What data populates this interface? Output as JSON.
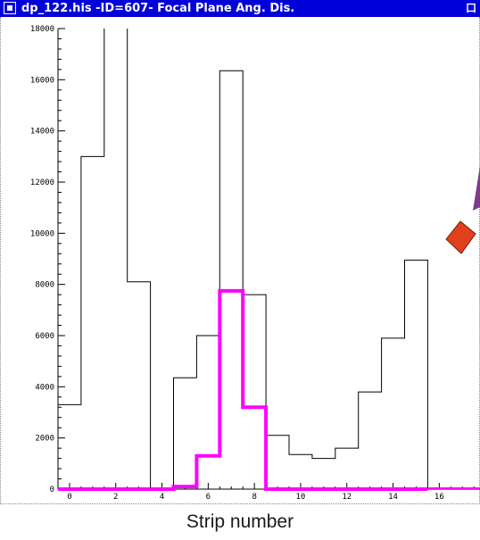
{
  "window": {
    "title": "dp_122.his -ID=607- Focal Plane Ang. Dis.",
    "maximize_glyph": "口",
    "menu_icon": "window-menu-icon"
  },
  "colors": {
    "titlebar": "#0000d8",
    "series_black": "#000000",
    "series_magenta": "#ff00ff",
    "shape_red": "#e0401c",
    "shape_purple": "#7a3b8c"
  },
  "caption": "Strip number",
  "chart_data": {
    "type": "histogram",
    "xlim": [
      -0.5,
      18
    ],
    "ylim": [
      0,
      18000
    ],
    "x_ticks": [
      0,
      2,
      4,
      6,
      8,
      10,
      12,
      14,
      16
    ],
    "x_tick_labels": [
      "0",
      "2",
      "4",
      "6",
      "8",
      "10",
      "12",
      "14",
      "16"
    ],
    "y_ticks": [
      0,
      2000,
      4000,
      6000,
      8000,
      10000,
      12000,
      14000,
      16000,
      18000
    ],
    "y_tick_labels": [
      "0",
      "2000",
      "4000",
      "6000",
      "8000",
      "10000",
      "12000",
      "14000",
      "16000",
      "18000"
    ],
    "xlabel": "Strip number",
    "series": [
      {
        "color": "#000000",
        "width": 1,
        "bins": [
          {
            "x0": -0.5,
            "x1": 0.5,
            "y": 3300
          },
          {
            "x0": 0.5,
            "x1": 1.5,
            "y": 13000
          },
          {
            "x0": 1.5,
            "x1": 2.5,
            "y": 19000
          },
          {
            "x0": 2.5,
            "x1": 3.5,
            "y": 8100
          },
          {
            "x0": 4.5,
            "x1": 5.5,
            "y": 4350
          },
          {
            "x0": 5.5,
            "x1": 6.5,
            "y": 6000
          },
          {
            "x0": 6.5,
            "x1": 7.5,
            "y": 16350
          },
          {
            "x0": 7.5,
            "x1": 8.5,
            "y": 7600
          },
          {
            "x0": 8.5,
            "x1": 9.5,
            "y": 2100
          },
          {
            "x0": 9.5,
            "x1": 10.5,
            "y": 1350
          },
          {
            "x0": 10.5,
            "x1": 11.5,
            "y": 1200
          },
          {
            "x0": 11.5,
            "x1": 12.5,
            "y": 1600
          },
          {
            "x0": 12.5,
            "x1": 13.5,
            "y": 3800
          },
          {
            "x0": 13.5,
            "x1": 14.5,
            "y": 5900
          },
          {
            "x0": 14.5,
            "x1": 15.5,
            "y": 8950
          }
        ]
      },
      {
        "color": "#ff00ff",
        "width": 4,
        "bins": [
          {
            "x0": -0.5,
            "x1": 4.5,
            "y": 0
          },
          {
            "x0": 4.5,
            "x1": 5.5,
            "y": 100
          },
          {
            "x0": 5.5,
            "x1": 6.5,
            "y": 1300
          },
          {
            "x0": 6.5,
            "x1": 7.5,
            "y": 7750
          },
          {
            "x0": 7.5,
            "x1": 8.5,
            "y": 3200
          },
          {
            "x0": 8.5,
            "x1": 15.5,
            "y": 0
          }
        ]
      }
    ]
  }
}
